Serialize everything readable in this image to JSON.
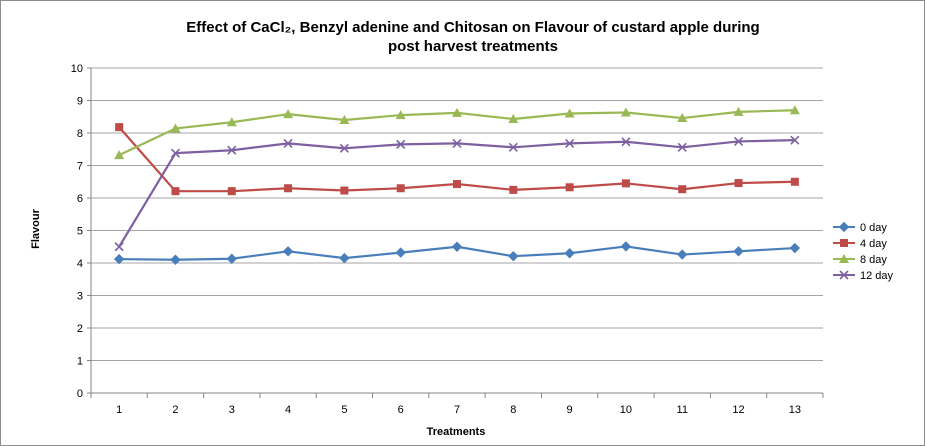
{
  "chart_data": {
    "type": "line",
    "title_line1": "Effect of CaCl₂, Benzyl adenine and Chitosan on Flavour of custard apple during",
    "title_line2": "post harvest treatments",
    "xlabel": "Treatments",
    "ylabel": "Flavour",
    "ylim": [
      0,
      10
    ],
    "y_ticks": [
      "0",
      "1",
      "2",
      "3",
      "4",
      "5",
      "6",
      "7",
      "8",
      "9",
      "10"
    ],
    "categories": [
      "1",
      "2",
      "3",
      "4",
      "5",
      "6",
      "7",
      "8",
      "9",
      "10",
      "11",
      "12",
      "13"
    ],
    "grid": "horizontal",
    "legend_position": "right",
    "series": [
      {
        "name": "0 day",
        "color": "#4a7ebb",
        "marker": "diamond",
        "values": [
          4.12,
          4.1,
          4.13,
          4.36,
          4.15,
          4.32,
          4.5,
          4.21,
          4.3,
          4.51,
          4.26,
          4.36,
          4.46
        ]
      },
      {
        "name": "4 day",
        "color": "#be4b48",
        "marker": "square",
        "values": [
          8.18,
          6.21,
          6.21,
          6.3,
          6.23,
          6.3,
          6.43,
          6.25,
          6.33,
          6.45,
          6.27,
          6.46,
          6.5
        ]
      },
      {
        "name": "8 day",
        "color": "#98b954",
        "marker": "triangle",
        "values": [
          7.32,
          8.14,
          8.33,
          8.58,
          8.4,
          8.55,
          8.62,
          8.43,
          8.6,
          8.63,
          8.46,
          8.65,
          8.7
        ]
      },
      {
        "name": "12 day",
        "color": "#7d60a0",
        "marker": "x",
        "values": [
          4.5,
          7.38,
          7.47,
          7.68,
          7.53,
          7.65,
          7.68,
          7.56,
          7.68,
          7.73,
          7.56,
          7.74,
          7.78
        ]
      }
    ]
  }
}
